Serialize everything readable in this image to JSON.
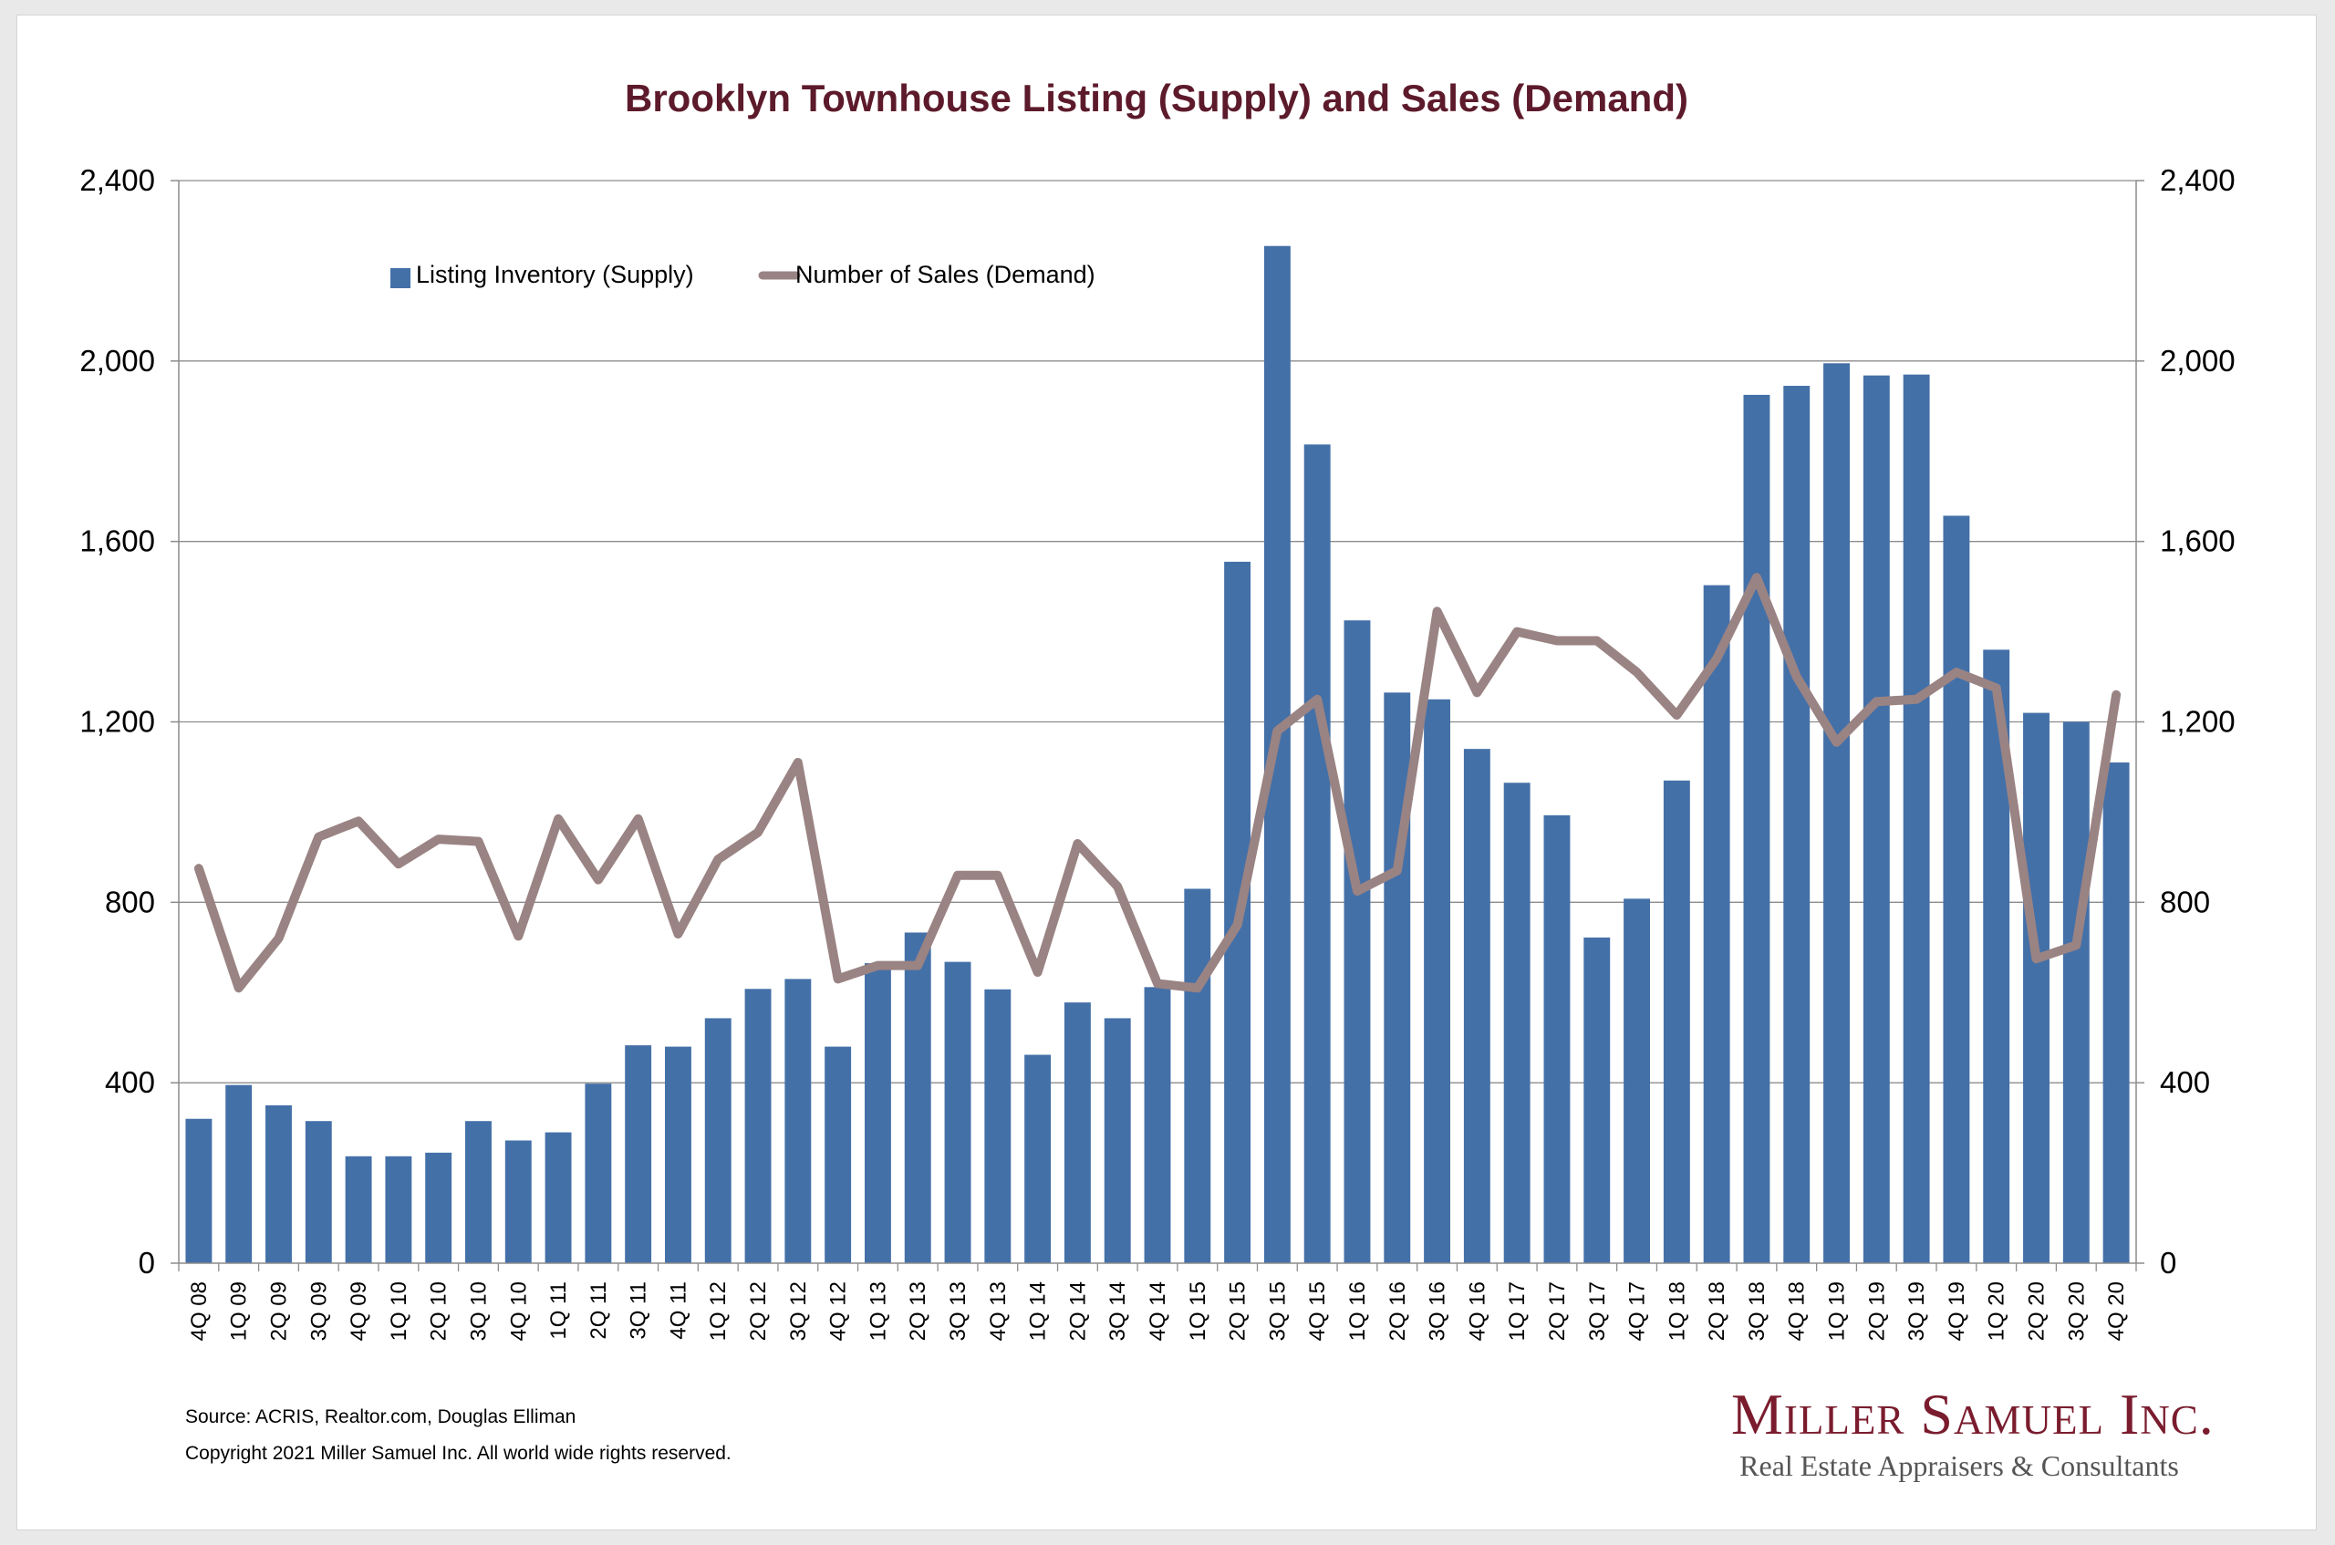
{
  "chart_data": {
    "type": "bar",
    "title": "Brooklyn Townhouse Listing (Supply) and Sales (Demand)",
    "xlabel": "",
    "ylabel": "",
    "ylim": [
      0,
      2400
    ],
    "y_ticks": [
      "0",
      "400",
      "800",
      "1,200",
      "1,600",
      "2,000",
      "2,400"
    ],
    "y_tick_values": [
      0,
      400,
      800,
      1200,
      1600,
      2000,
      2400
    ],
    "secondary_axis": {
      "ylim": [
        0,
        2400
      ],
      "position": "right"
    },
    "grid": true,
    "legend_position": "top-left",
    "categories": [
      "4Q 08",
      "1Q 09",
      "2Q 09",
      "3Q 09",
      "4Q 09",
      "1Q 10",
      "2Q 10",
      "3Q 10",
      "4Q 10",
      "1Q 11",
      "2Q 11",
      "3Q 11",
      "4Q 11",
      "1Q 12",
      "2Q 12",
      "3Q 12",
      "4Q 12",
      "1Q 13",
      "2Q 13",
      "3Q 13",
      "4Q 13",
      "1Q 14",
      "2Q 14",
      "3Q 14",
      "4Q 14",
      "1Q 15",
      "2Q 15",
      "3Q 15",
      "4Q 15",
      "1Q 16",
      "2Q 16",
      "3Q 16",
      "4Q 16",
      "1Q 17",
      "2Q 17",
      "3Q 17",
      "4Q 17",
      "1Q 18",
      "2Q 18",
      "3Q 18",
      "4Q 18",
      "1Q 19",
      "2Q 19",
      "3Q 19",
      "4Q 19",
      "1Q 20",
      "2Q 20",
      "3Q 20",
      "4Q 20"
    ],
    "series": [
      {
        "name": "Listing Inventory (Supply)",
        "type": "bar",
        "color": "#4470a8",
        "values": [
          320,
          395,
          350,
          315,
          237,
          237,
          245,
          315,
          272,
          290,
          398,
          483,
          480,
          543,
          608,
          630,
          480,
          665,
          733,
          668,
          607,
          462,
          578,
          543,
          612,
          830,
          1555,
          2255,
          1815,
          1425,
          1265,
          1250,
          1140,
          1065,
          993,
          722,
          808,
          1070,
          1503,
          1925,
          1945,
          1995,
          1968,
          1970,
          1657,
          1360,
          1220,
          1200,
          1110
        ]
      },
      {
        "name": "Number of Sales (Demand)",
        "type": "line",
        "color": "#9a8383",
        "values": [
          875,
          610,
          720,
          945,
          980,
          885,
          940,
          935,
          725,
          985,
          850,
          985,
          730,
          895,
          955,
          1110,
          630,
          660,
          660,
          860,
          860,
          645,
          930,
          835,
          620,
          610,
          750,
          1180,
          1250,
          825,
          870,
          1445,
          1265,
          1400,
          1380,
          1380,
          1310,
          1215,
          1340,
          1520,
          1300,
          1155,
          1245,
          1250,
          1310,
          1275,
          675,
          705,
          1260
        ]
      }
    ]
  },
  "footer": {
    "source": "Source: ACRIS, Realtor.com, Douglas Elliman",
    "copyright": "Copyright 2021 Miller Samuel Inc.  All world wide rights reserved."
  },
  "logo": {
    "name": "Miller Samuel Inc.",
    "tagline": "Real Estate Appraisers & Consultants"
  }
}
